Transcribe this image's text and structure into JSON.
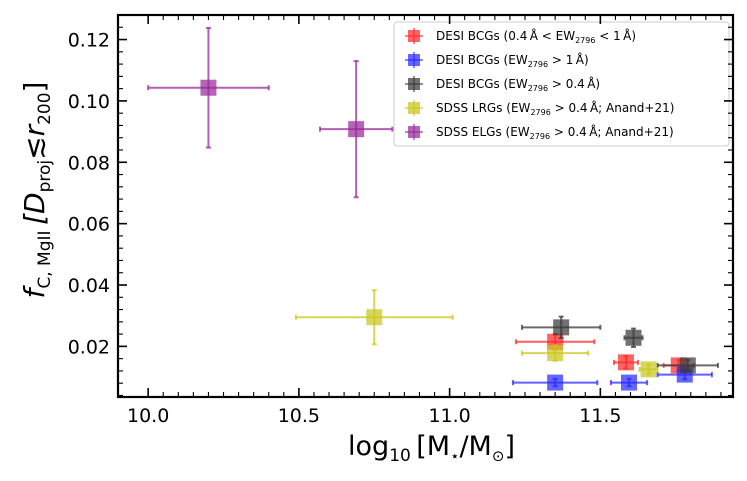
{
  "chart_data": {
    "type": "scatter",
    "xlabel": {
      "prefix": "log",
      "sub": "10",
      "body": "[M",
      "sub2": "⋆",
      "mid": "/M",
      "sub3": "⊙",
      "end": "]"
    },
    "ylabel": {
      "f": "f",
      "sub": "C, MgII",
      "bracket": "[D",
      "sub2": "proj",
      "rest": "≲r",
      "sub3": "200",
      "end": "]"
    },
    "xlim": [
      9.9,
      11.94
    ],
    "ylim": [
      0.0035,
      0.128
    ],
    "xticks": [
      10.0,
      10.5,
      11.0,
      11.5
    ],
    "xtick_labels": [
      "10.0",
      "10.5",
      "11.0",
      "11.5"
    ],
    "yticks": [
      0.02,
      0.04,
      0.06,
      0.08,
      0.1,
      0.12
    ],
    "ytick_labels": [
      "0.02",
      "0.04",
      "0.06",
      "0.08",
      "0.10",
      "0.12"
    ],
    "legend_position": "top-right",
    "series": [
      {
        "name": "DESI BCGs (0.4 Å < EW2796 < 1 Å)",
        "label": {
          "pre": "DESI BCGs (0.4 Å < EW",
          "sub": "2796",
          "post": " < 1 Å)"
        },
        "color": "#ff2a2a",
        "points": [
          {
            "x": 11.35,
            "y": 0.0215,
            "xerr": 0.13,
            "yerr": 0.0025
          },
          {
            "x": 11.585,
            "y": 0.0148,
            "xerr": 0.04,
            "yerr": 0.002
          },
          {
            "x": 11.76,
            "y": 0.0138,
            "xerr": 0.05,
            "yerr": 0.0018
          }
        ]
      },
      {
        "name": "DESI BCGs (EW2796 > 1 Å)",
        "label": {
          "pre": "DESI BCGs (EW",
          "sub": "2796",
          "post": " > 1 Å)"
        },
        "color": "#2a2aff",
        "points": [
          {
            "x": 11.35,
            "y": 0.0082,
            "xerr": 0.14,
            "yerr": 0.0012
          },
          {
            "x": 11.595,
            "y": 0.0082,
            "xerr": 0.06,
            "yerr": 0.0012
          },
          {
            "x": 11.78,
            "y": 0.0108,
            "xerr": 0.09,
            "yerr": 0.0015
          }
        ]
      },
      {
        "name": "DESI BCGs (EW2796 > 0.4 Å)",
        "label": {
          "pre": "DESI BCGs (EW",
          "sub": "2796",
          "post": " > 0.4 Å)"
        },
        "color": "#3a3a3a",
        "points": [
          {
            "x": 11.37,
            "y": 0.0262,
            "xerr": 0.13,
            "yerr": 0.0035
          },
          {
            "x": 11.61,
            "y": 0.0228,
            "xerr": 0.03,
            "yerr": 0.003
          },
          {
            "x": 11.79,
            "y": 0.0138,
            "xerr": 0.1,
            "yerr": 0.0018
          }
        ]
      },
      {
        "name": "SDSS LRGs (EW2796 > 0.4 Å; Anand+21)",
        "label": {
          "pre": "SDSS LRGs (EW",
          "sub": "2796",
          "post": " > 0.4 Å; Anand+21)"
        },
        "color": "#c8c81e",
        "points": [
          {
            "x": 10.75,
            "y": 0.0295,
            "xerr": 0.26,
            "yerr": 0.0088
          },
          {
            "x": 11.35,
            "y": 0.0178,
            "xerr": 0.11,
            "yerr": 0.0025
          },
          {
            "x": 11.66,
            "y": 0.0125,
            "xerr": 0.03,
            "yerr": 0.0015
          }
        ]
      },
      {
        "name": "SDSS ELGs (EW2796 > 0.4 Å; Anand+21)",
        "label": {
          "pre": "SDSS ELGs (EW",
          "sub": "2796",
          "post": " > 0.4 Å; Anand+21)"
        },
        "color": "#9a2a9a",
        "points": [
          {
            "x": 10.2,
            "y": 0.1043,
            "xerr": 0.2,
            "yerr": 0.0195
          },
          {
            "x": 10.69,
            "y": 0.0908,
            "xerr": 0.12,
            "yerr": 0.0222
          }
        ]
      }
    ]
  }
}
